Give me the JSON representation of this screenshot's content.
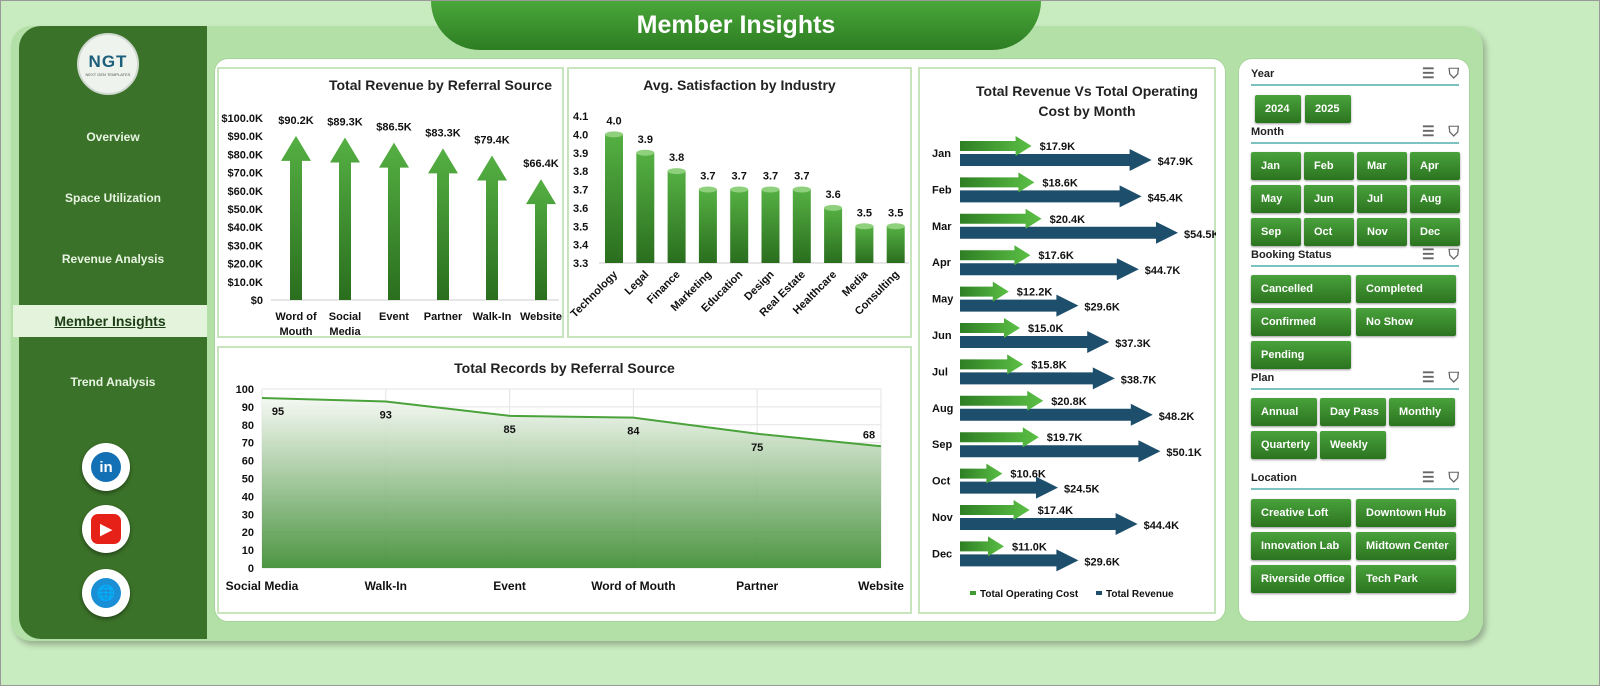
{
  "header": {
    "title": "Member Insights"
  },
  "logo": {
    "text": "NGT",
    "subtext": "NEXT GEN TEMPLATES"
  },
  "sidebar": {
    "items": [
      {
        "label": "Overview"
      },
      {
        "label": "Space Utilization"
      },
      {
        "label": "Revenue Analysis"
      },
      {
        "label": "Member Insights",
        "active": true
      },
      {
        "label": "Trend Analysis"
      }
    ],
    "social": [
      {
        "icon": "linkedin-icon",
        "text": "in"
      },
      {
        "icon": "youtube-icon",
        "text": "▶"
      },
      {
        "icon": "globe-icon",
        "text": "🌐"
      }
    ]
  },
  "colors": {
    "sidebar": "#3b7229",
    "accent": "#3f9a32",
    "navy": "#1d4e6b"
  },
  "chart_data": [
    {
      "type": "bar",
      "title": "Total Revenue  by Referral Source",
      "categories": [
        "Word of Mouth",
        "Social Media",
        "Event",
        "Partner",
        "Walk-In",
        "Website"
      ],
      "values": [
        90.2,
        89.3,
        86.5,
        83.3,
        79.4,
        66.4
      ],
      "labels": [
        "$90.2K",
        "$89.3K",
        "$86.5K",
        "$83.3K",
        "$79.4K",
        "$66.4K"
      ],
      "ylim": [
        0,
        100
      ],
      "yticks": [
        "$0",
        "$10.0K",
        "$20.0K",
        "$30.0K",
        "$40.0K",
        "$50.0K",
        "$60.0K",
        "$70.0K",
        "$80.0K",
        "$90.0K",
        "$100.0K"
      ]
    },
    {
      "type": "bar",
      "title": "Avg. Satisfaction by Industry",
      "categories": [
        "Technology",
        "Legal",
        "Finance",
        "Marketing",
        "Education",
        "Design",
        "Real Estate",
        "Healthcare",
        "Media",
        "Consulting"
      ],
      "values": [
        4.0,
        3.9,
        3.8,
        3.7,
        3.7,
        3.7,
        3.7,
        3.6,
        3.5,
        3.5
      ],
      "ylim": [
        3.3,
        4.1
      ],
      "yticks": [
        "3.3",
        "3.4",
        "3.5",
        "3.6",
        "3.7",
        "3.8",
        "3.9",
        "4.0",
        "4.1"
      ]
    },
    {
      "type": "area",
      "title": "Total Records by Referral Source",
      "categories": [
        "Social Media",
        "Walk-In",
        "Event",
        "Word of Mouth",
        "Partner",
        "Website"
      ],
      "values": [
        95,
        93,
        85,
        84,
        75,
        68
      ],
      "ylim": [
        0,
        100
      ],
      "yticks": [
        "0",
        "10",
        "20",
        "30",
        "40",
        "50",
        "60",
        "70",
        "80",
        "90",
        "100"
      ],
      "grid": true
    },
    {
      "type": "bar",
      "orientation": "horizontal",
      "title": "Total Revenue Vs Total Operating Cost by Month",
      "categories": [
        "Jan",
        "Feb",
        "Mar",
        "Apr",
        "May",
        "Jun",
        "Jul",
        "Aug",
        "Sep",
        "Oct",
        "Nov",
        "Dec"
      ],
      "series": [
        {
          "name": "Total Operating Cost",
          "values": [
            17.9,
            18.6,
            20.4,
            17.6,
            12.2,
            15.0,
            15.8,
            20.8,
            19.7,
            10.6,
            17.4,
            11.0
          ],
          "labels": [
            "$17.9K",
            "$18.6K",
            "$20.4K",
            "$17.6K",
            "$12.2K",
            "$15.0K",
            "$15.8K",
            "$20.8K",
            "$19.7K",
            "$10.6K",
            "$17.4K",
            "$11.0K"
          ],
          "color": "#3f9a32"
        },
        {
          "name": "Total Revenue",
          "values": [
            47.9,
            45.4,
            54.5,
            44.7,
            29.6,
            37.3,
            38.7,
            48.2,
            50.1,
            24.5,
            44.4,
            29.6
          ],
          "labels": [
            "$47.9K",
            "$45.4K",
            "$54.5K",
            "$44.7K",
            "$29.6K",
            "$37.3K",
            "$38.7K",
            "$48.2K",
            "$50.1K",
            "$24.5K",
            "$44.4K",
            "$29.6K"
          ],
          "color": "#1d4e6b"
        }
      ],
      "legend": "bottom"
    }
  ],
  "slicers": [
    {
      "title": "Year",
      "items": [
        "2024",
        "2025"
      ]
    },
    {
      "title": "Month",
      "items": [
        "Jan",
        "Feb",
        "Mar",
        "Apr",
        "May",
        "Jun",
        "Jul",
        "Aug",
        "Sep",
        "Oct",
        "Nov",
        "Dec"
      ]
    },
    {
      "title": "Booking Status",
      "items": [
        "Cancelled",
        "Completed",
        "Confirmed",
        "No Show",
        "Pending"
      ]
    },
    {
      "title": "Plan",
      "items": [
        "Annual",
        "Day Pass",
        "Monthly",
        "Quarterly",
        "Weekly"
      ]
    },
    {
      "title": "Location",
      "items": [
        "Creative Loft",
        "Downtown Hub",
        "Innovation Lab",
        "Midtown Center",
        "Riverside Office",
        "Tech Park"
      ]
    }
  ]
}
